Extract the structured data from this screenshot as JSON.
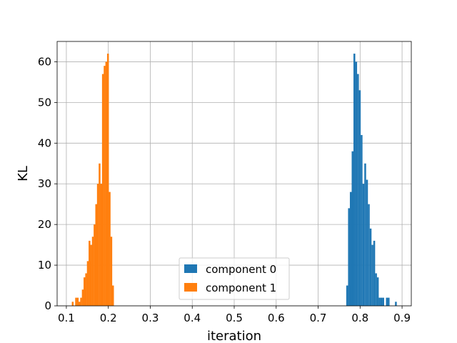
{
  "chart_data": {
    "type": "bar",
    "subtype": "histogram",
    "title": "",
    "xlabel": "iteration",
    "ylabel": "KL",
    "xlim": [
      0.078,
      0.922
    ],
    "ylim": [
      0,
      65
    ],
    "xticks": [
      "0.1",
      "0.2",
      "0.3",
      "0.4",
      "0.5",
      "0.6",
      "0.7",
      "0.8",
      "0.9"
    ],
    "yticks": [
      "0",
      "10",
      "20",
      "30",
      "40",
      "50",
      "60"
    ],
    "grid": true,
    "legend_position": "lower center",
    "bin_width": 0.0043,
    "series": [
      {
        "name": "component 0",
        "color": "#1f77b4",
        "bin_starts": [
          0.767,
          0.7713,
          0.7756,
          0.7799,
          0.7842,
          0.7885,
          0.7928,
          0.7971,
          0.8014,
          0.8057,
          0.81,
          0.8143,
          0.8186,
          0.8229,
          0.8272,
          0.8315,
          0.8358,
          0.8401,
          0.8444,
          0.8487,
          0.853,
          0.8573,
          0.8616,
          0.8659,
          0.8702,
          0.8745,
          0.8788,
          0.8831
        ],
        "counts": [
          5,
          24,
          28,
          38,
          62,
          60,
          57,
          53,
          42,
          30,
          35,
          31,
          25,
          19,
          15,
          16,
          8,
          7,
          2,
          2,
          2,
          0,
          2,
          2,
          0,
          0,
          0,
          1
        ]
      },
      {
        "name": "component 1",
        "color": "#ff7f0e",
        "bin_starts": [
          0.113,
          0.117,
          0.121,
          0.125,
          0.129,
          0.133,
          0.137,
          0.141,
          0.145,
          0.149,
          0.153,
          0.157,
          0.161,
          0.165,
          0.169,
          0.173,
          0.177,
          0.181,
          0.185,
          0.189,
          0.193,
          0.197,
          0.201,
          0.205,
          0.209,
          0.213,
          0.217,
          0.221,
          0.225,
          0.229
        ],
        "counts": [
          1,
          0,
          2,
          2,
          1,
          2,
          4,
          7,
          8,
          11,
          16,
          15,
          17,
          20,
          25,
          30,
          35,
          30,
          57,
          59,
          60,
          62,
          28,
          17,
          5,
          0,
          0,
          0,
          0,
          0
        ]
      }
    ]
  }
}
